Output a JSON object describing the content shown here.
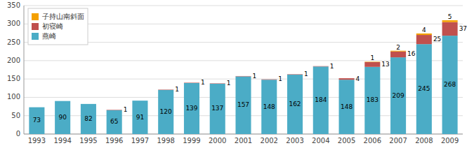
{
  "chart_data": {
    "type": "bar",
    "stacked": true,
    "data_labels": true,
    "grid": true,
    "legend": "top-left",
    "categories": [
      "1993",
      "1994",
      "1995",
      "1996",
      "1997",
      "1998",
      "1999",
      "2000",
      "2001",
      "2002",
      "2003",
      "2004",
      "2005",
      "2006",
      "2007",
      "2008",
      "2009"
    ],
    "series": [
      {
        "name": "燕崎",
        "color": "#4BACC6",
        "values": [
          73,
          90,
          82,
          65,
          91,
          120,
          139,
          137,
          157,
          148,
          162,
          184,
          148,
          183,
          209,
          245,
          268
        ]
      },
      {
        "name": "初寝崎",
        "color": "#C0504D",
        "values": [
          0,
          0,
          0,
          1,
          0,
          1,
          1,
          1,
          1,
          1,
          1,
          1,
          4,
          13,
          16,
          25,
          37
        ]
      },
      {
        "name": "子持山南斜面",
        "color": "#F4A000",
        "values": [
          0,
          0,
          0,
          0,
          0,
          0,
          0,
          0,
          0,
          0,
          0,
          0,
          0,
          1,
          2,
          4,
          5
        ]
      }
    ],
    "ylim": [
      0,
      350
    ],
    "yticks": [
      0,
      50,
      100,
      150,
      200,
      250,
      300,
      350
    ]
  }
}
